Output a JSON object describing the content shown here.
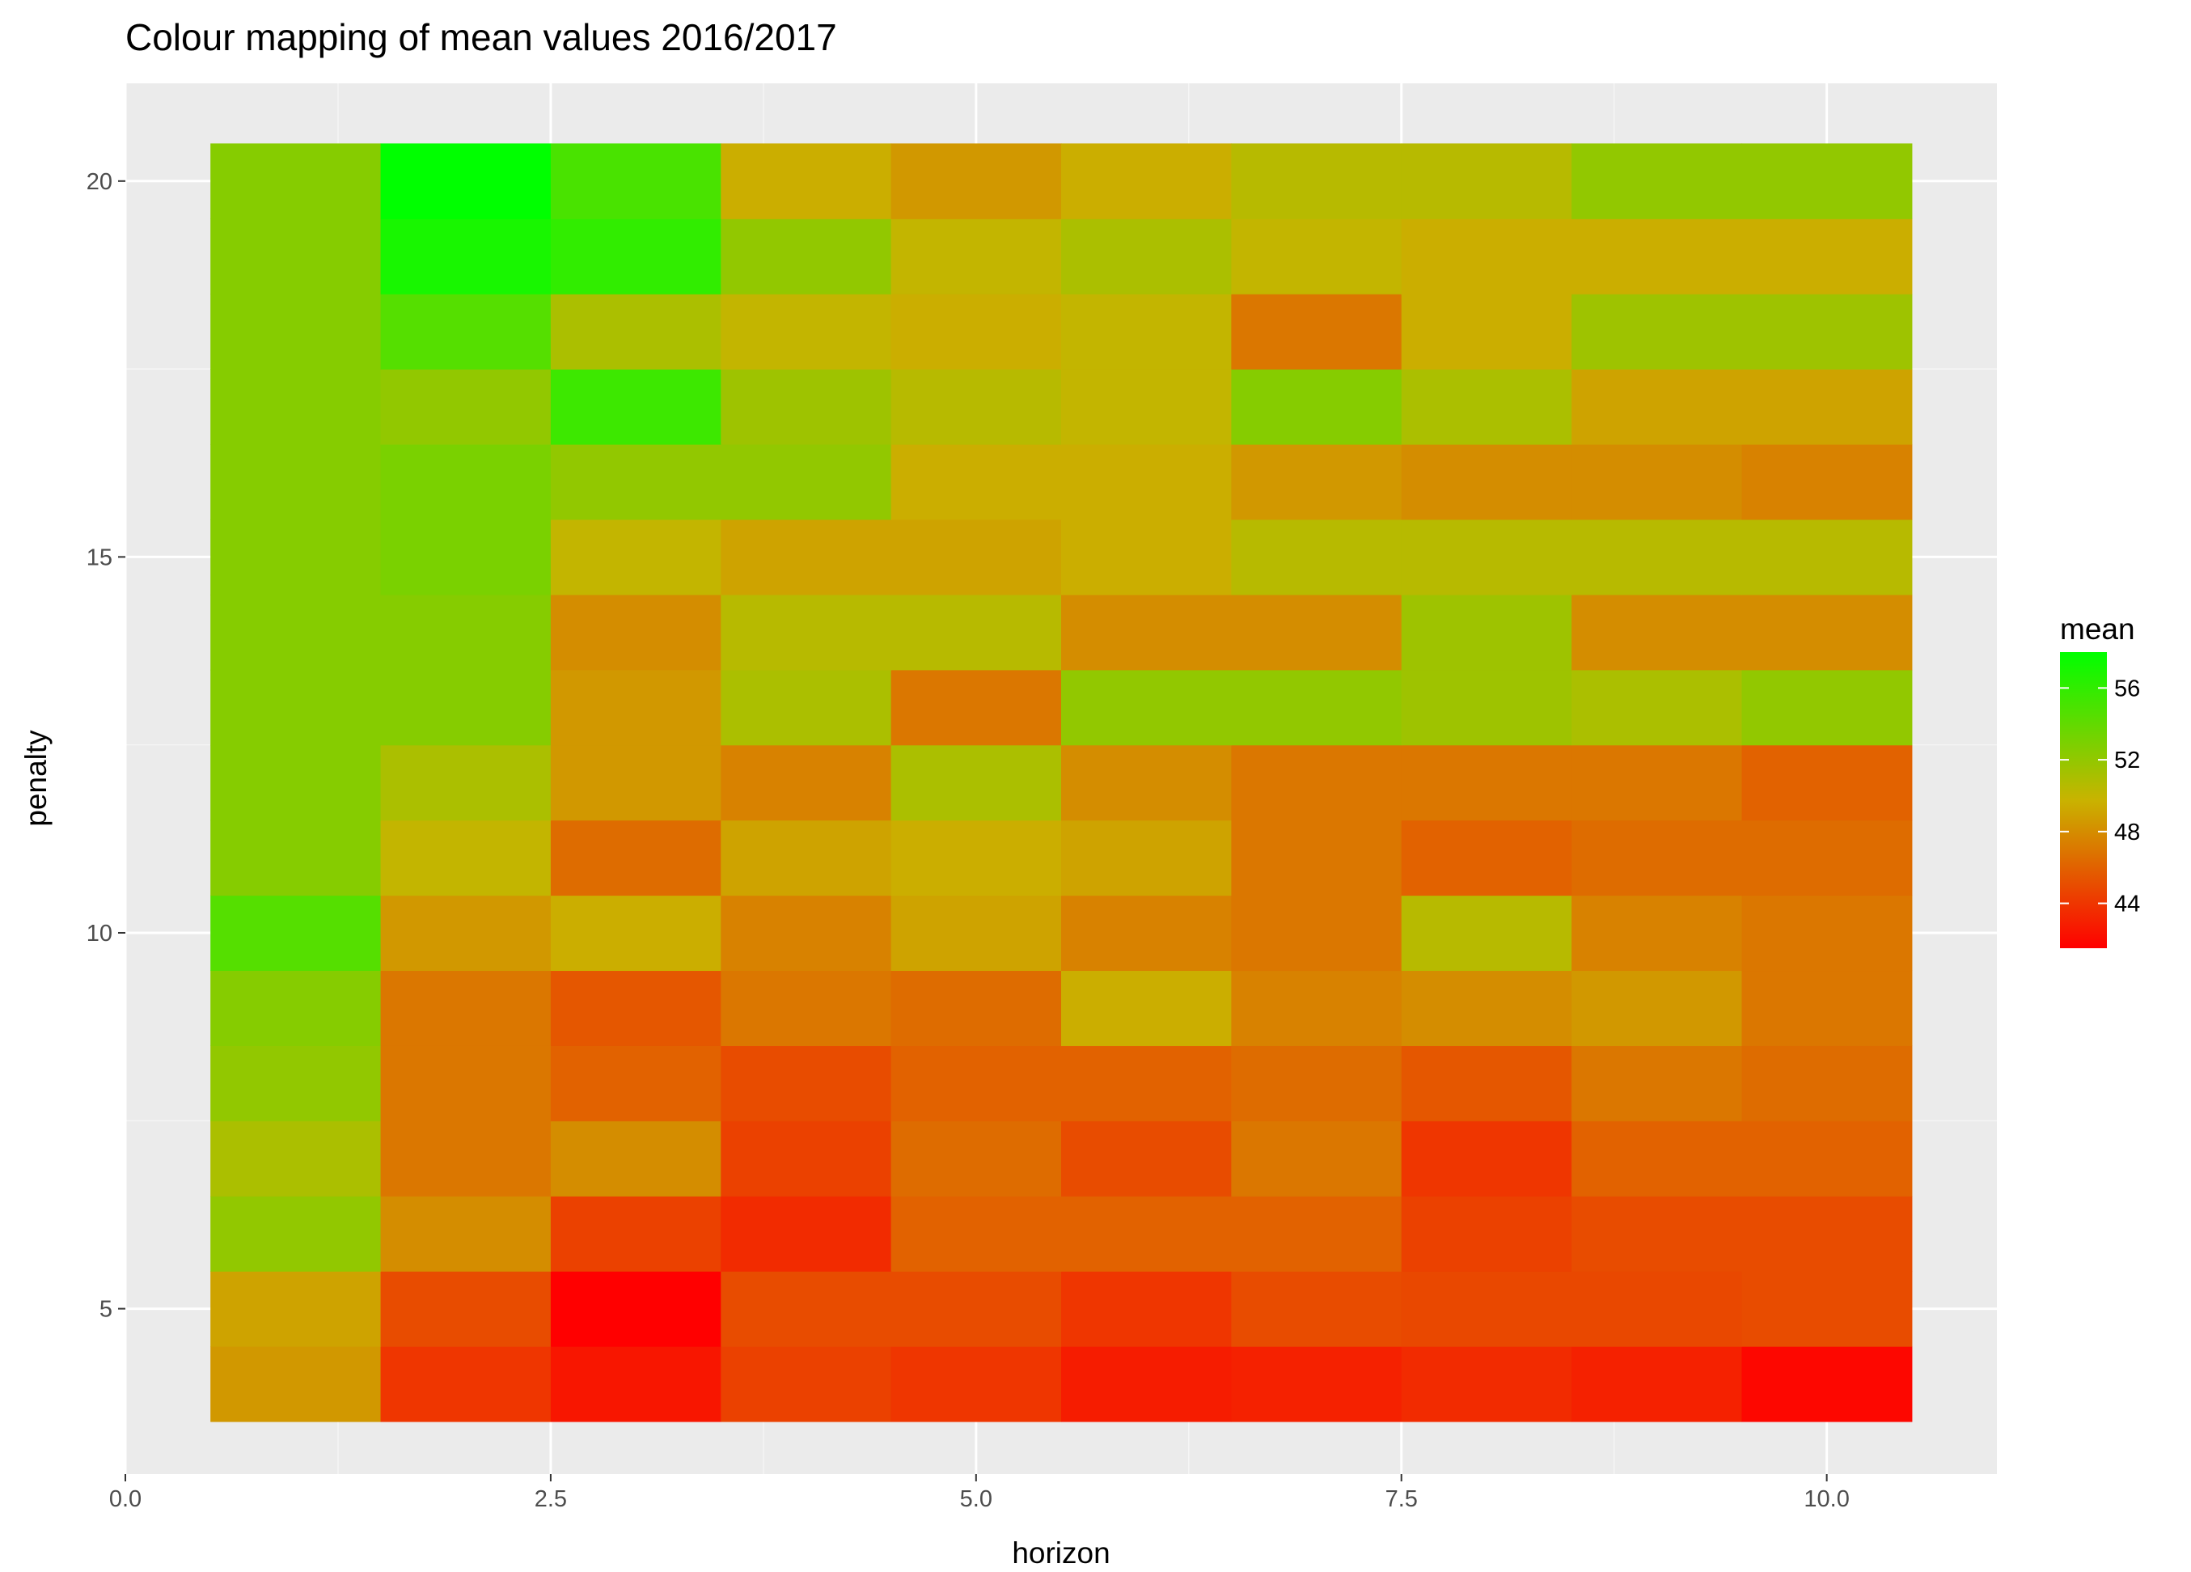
{
  "chart_data": {
    "type": "heatmap",
    "title": "Colour mapping of mean values 2016/2017",
    "xlabel": "horizon",
    "ylabel": "penalty",
    "x_ticks": [
      "0.0",
      "2.5",
      "5.0",
      "7.5",
      "10.0"
    ],
    "x_tick_values": [
      0,
      2.5,
      5,
      7.5,
      10
    ],
    "y_ticks": [
      "5",
      "10",
      "15",
      "20"
    ],
    "y_tick_values": [
      5,
      10,
      15,
      20
    ],
    "xlim": [
      0,
      11
    ],
    "ylim": [
      2.8,
      21.3
    ],
    "x": [
      1,
      2,
      3,
      4,
      5,
      6,
      7,
      8,
      9,
      10
    ],
    "y": [
      4,
      5,
      6,
      7,
      8,
      9,
      10,
      11,
      12,
      13,
      14,
      15,
      16,
      17,
      18,
      19,
      20
    ],
    "values": [
      [
        48.5,
        44.0,
        42.5,
        44.5,
        44.0,
        42.8,
        43.0,
        43.5,
        43.0,
        41.8
      ],
      [
        49.0,
        45.0,
        41.5,
        45.0,
        45.0,
        44.0,
        45.0,
        44.8,
        44.8,
        45.0
      ],
      [
        52.0,
        48.0,
        44.5,
        43.5,
        46.0,
        46.0,
        46.0,
        44.5,
        45.0,
        45.0
      ],
      [
        51.0,
        47.0,
        48.0,
        44.5,
        46.5,
        45.0,
        47.0,
        44.0,
        46.0,
        46.0
      ],
      [
        52.0,
        47.0,
        46.0,
        45.0,
        46.0,
        46.0,
        46.5,
        45.5,
        47.0,
        46.5
      ],
      [
        52.5,
        47.0,
        45.5,
        47.0,
        46.5,
        49.5,
        47.5,
        48.0,
        48.5,
        47.0
      ],
      [
        54.5,
        48.5,
        49.5,
        47.5,
        49.0,
        47.5,
        47.0,
        50.5,
        47.5,
        47.0
      ],
      [
        52.5,
        50.0,
        46.5,
        49.0,
        49.5,
        49.0,
        47.0,
        46.0,
        46.5,
        46.5
      ],
      [
        52.5,
        51.0,
        48.5,
        47.5,
        51.0,
        48.0,
        47.0,
        47.0,
        47.0,
        46.0
      ],
      [
        52.5,
        52.5,
        48.5,
        51.0,
        47.0,
        52.0,
        52.0,
        51.5,
        51.0,
        52.0
      ],
      [
        52.5,
        52.5,
        48.0,
        50.5,
        50.5,
        48.0,
        48.0,
        51.5,
        48.0,
        48.0
      ],
      [
        52.5,
        53.0,
        50.0,
        49.0,
        49.0,
        49.5,
        50.5,
        50.5,
        50.5,
        50.5
      ],
      [
        52.5,
        53.0,
        52.0,
        52.0,
        49.5,
        49.5,
        48.5,
        48.0,
        48.0,
        47.5
      ],
      [
        52.5,
        52.0,
        55.5,
        51.5,
        50.5,
        50.0,
        52.5,
        51.0,
        49.0,
        49.0
      ],
      [
        52.5,
        54.5,
        51.0,
        50.0,
        49.5,
        50.0,
        47.0,
        49.5,
        51.5,
        51.5
      ],
      [
        52.5,
        57.0,
        56.0,
        52.0,
        50.0,
        51.0,
        50.0,
        49.5,
        49.5,
        49.5
      ],
      [
        52.5,
        58.0,
        55.0,
        49.5,
        48.5,
        49.5,
        50.5,
        50.5,
        52.0,
        52.0
      ]
    ],
    "colorscale": {
      "name": "mean",
      "low_color": "#ff0000",
      "mid_color": "#c9b300",
      "high_color": "#00ff00",
      "min": 41.5,
      "max": 58,
      "ticks": [
        "44",
        "48",
        "52",
        "56"
      ],
      "tick_values": [
        44,
        48,
        52,
        56
      ]
    },
    "background_color": "#ebebeb",
    "grid": true,
    "legend_position": "right"
  }
}
